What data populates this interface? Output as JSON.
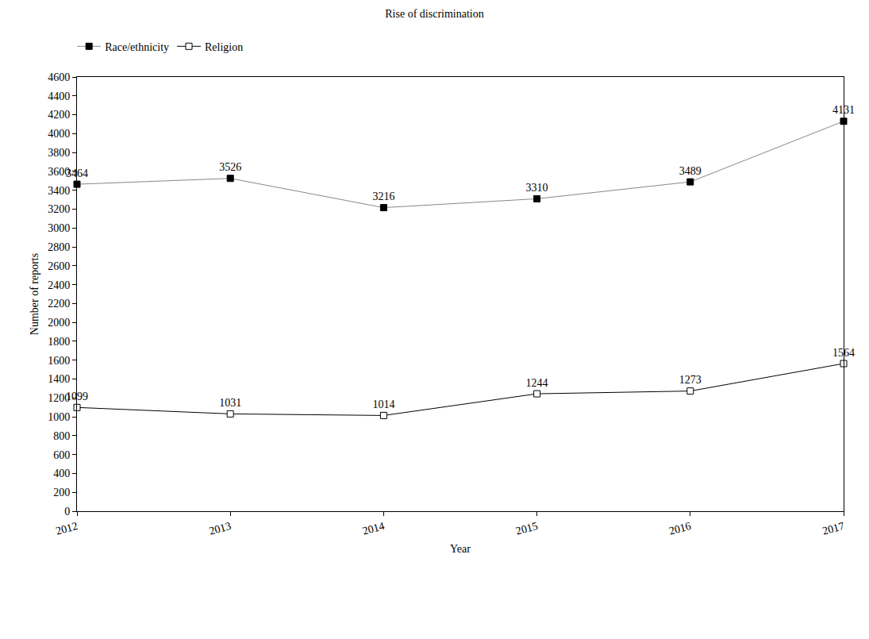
{
  "chart_data": {
    "type": "line",
    "title": "Rise of discrimination",
    "x_label": "Year",
    "y_label": "Number of reports",
    "x": [
      2012,
      2013,
      2014,
      2015,
      2016,
      2017
    ],
    "xlim": [
      2012,
      2017
    ],
    "xticks": [
      2012,
      2013,
      2014,
      2015,
      2016,
      2017
    ],
    "ylim": [
      0,
      4600
    ],
    "yticks": [
      0,
      200,
      400,
      600,
      800,
      1000,
      1200,
      1400,
      1600,
      1800,
      2000,
      2200,
      2400,
      2600,
      2800,
      3000,
      3200,
      3400,
      3600,
      3800,
      4000,
      4200,
      4400,
      4600
    ],
    "grid": false,
    "legend": "top left",
    "data_labels": true,
    "series": [
      {
        "name": "Race/ethnicity",
        "color": "#888888",
        "marker": "square-filled",
        "values": [
          3464,
          3526,
          3216,
          3310,
          3489,
          4131
        ]
      },
      {
        "name": "Religion",
        "color": "#000000",
        "marker": "square-open",
        "values": [
          1099,
          1031,
          1014,
          1244,
          1273,
          1564
        ]
      }
    ]
  }
}
